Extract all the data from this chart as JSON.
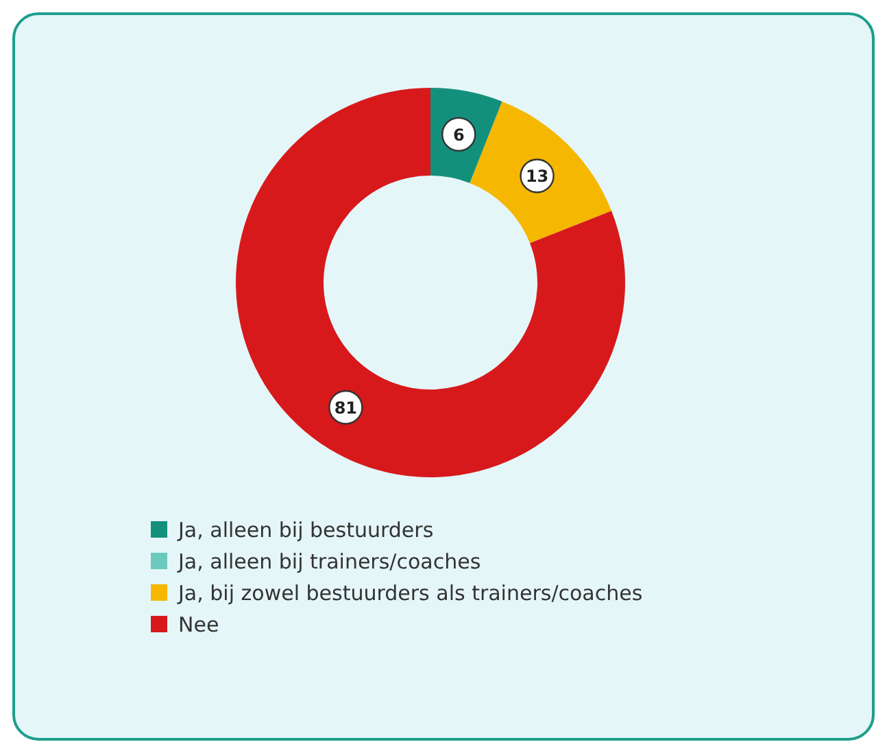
{
  "chart_data": {
    "type": "donut",
    "categories": [
      "Ja, alleen bij bestuurders",
      "Ja, alleen bij trainers/coaches",
      "Ja, bij zowel bestuurders als trainers/coaches",
      "Nee"
    ],
    "values": [
      6,
      0,
      13,
      81
    ],
    "colors": [
      "#13907c",
      "#6cc9bd",
      "#f5b700",
      "#d7191c"
    ],
    "value_labels": [
      "6",
      null,
      "13",
      "81"
    ],
    "legend": "bottom"
  }
}
